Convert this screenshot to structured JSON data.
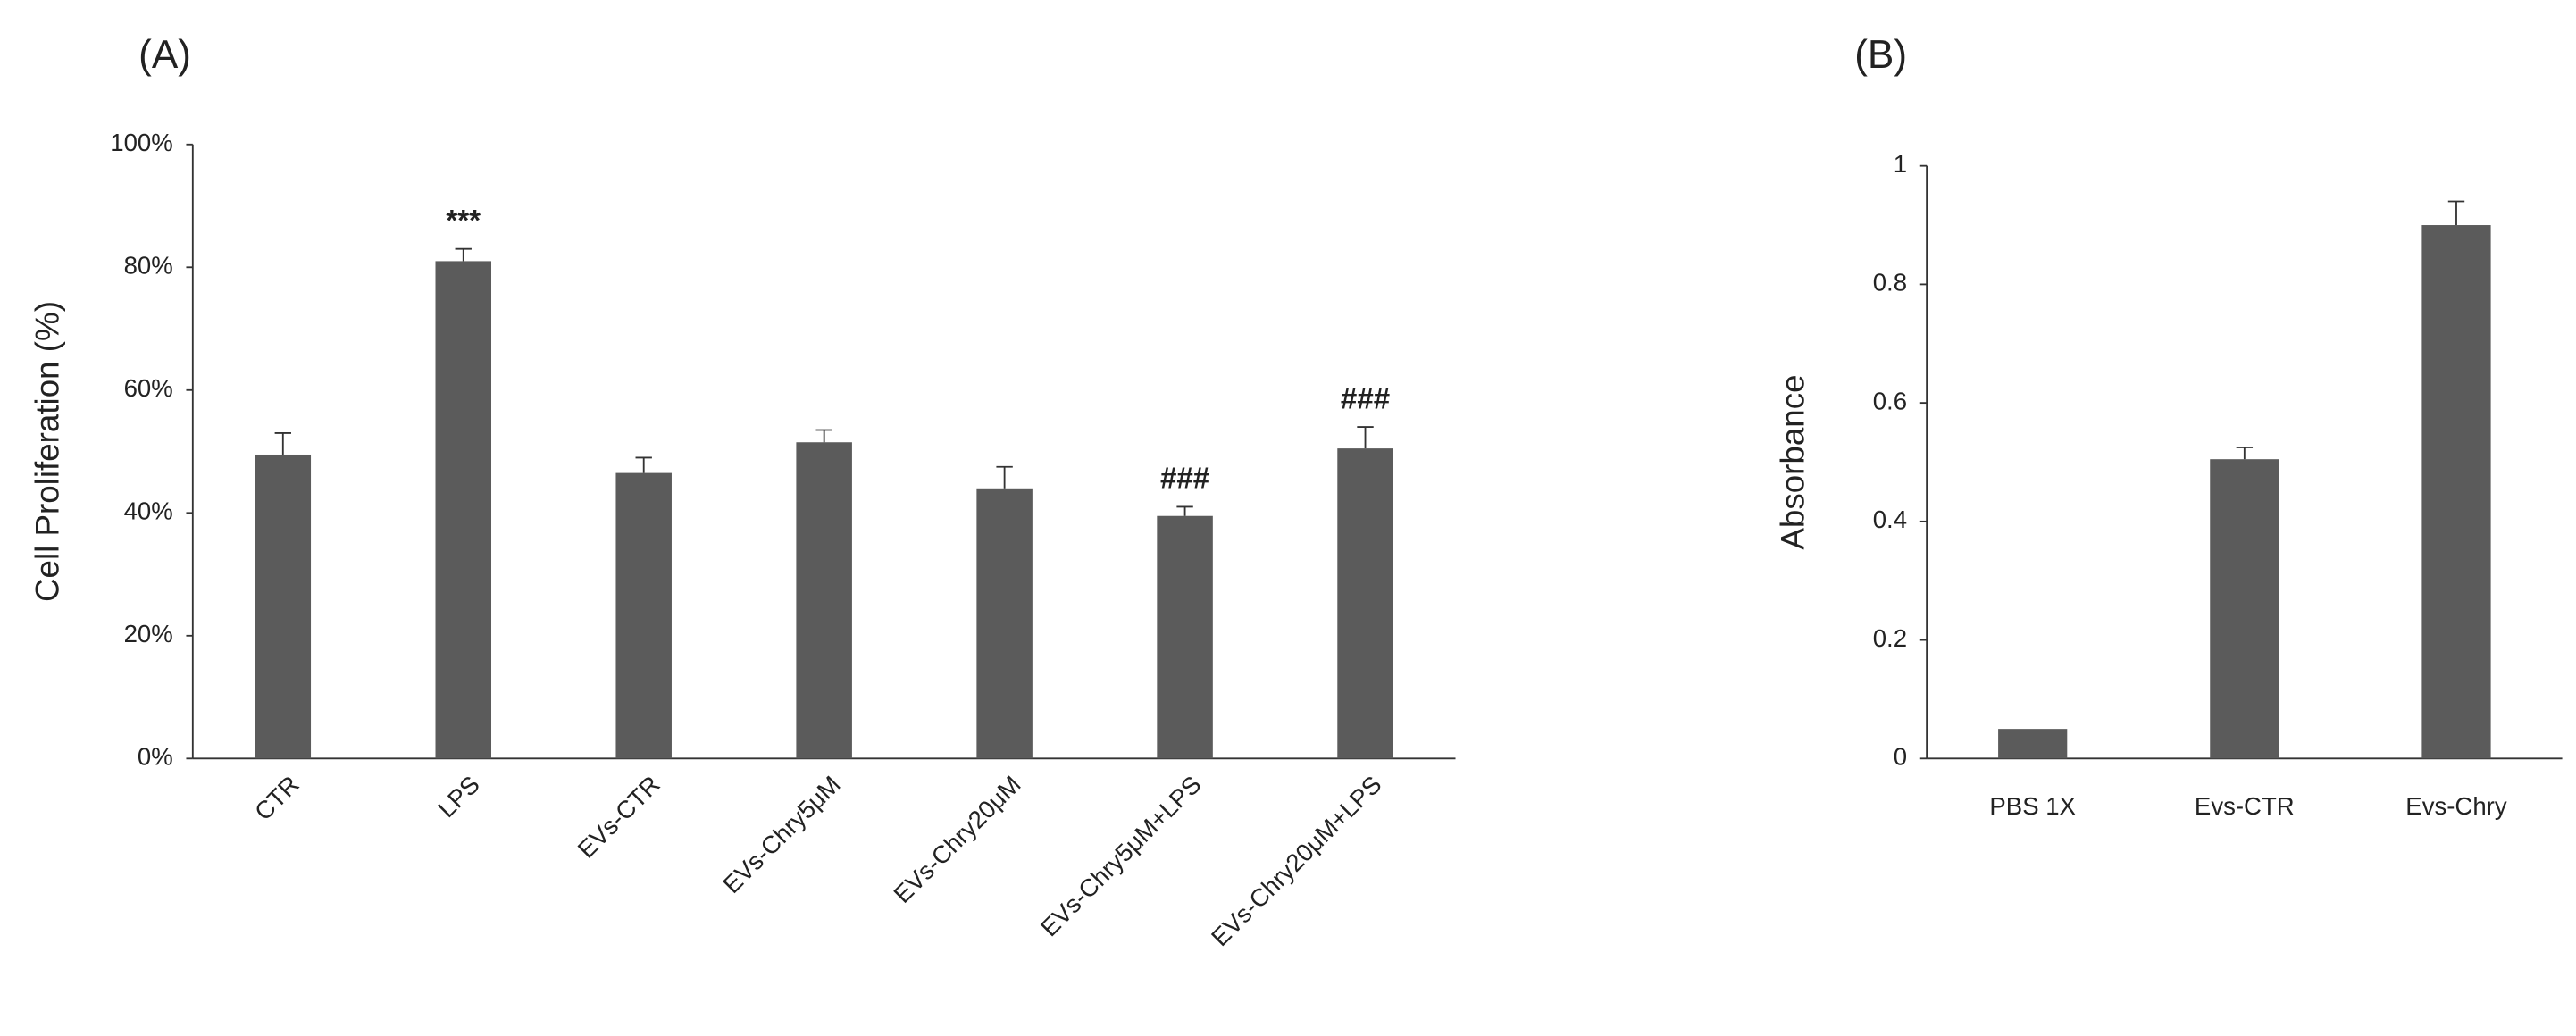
{
  "chart_data": [
    {
      "type": "bar",
      "panel_label": "(A)",
      "ylabel": "Cell Proliferation (%)",
      "categories": [
        "CTR",
        "LPS",
        "EVs-CTR",
        "EVs-Chry5μM",
        "EVs-Chry20μM",
        "EVs-Chry5μM+LPS",
        "EVs-Chry20μM+LPS"
      ],
      "values": [
        49.5,
        81,
        46.5,
        51.5,
        44,
        39.5,
        50.5
      ],
      "errors": [
        3.5,
        2,
        2.5,
        2,
        3.5,
        1.5,
        3.5
      ],
      "annotations": [
        {
          "text": "***",
          "category": "LPS"
        },
        {
          "text": "###",
          "category": "EVs-Chry5μM+LPS"
        },
        {
          "text": "###",
          "category": "EVs-Chry20μM+LPS"
        }
      ],
      "color": "#5b5b5b",
      "ylim": [
        0,
        100
      ],
      "yticks": [
        {
          "value": 0,
          "label": "0%"
        },
        {
          "value": 20,
          "label": "20%"
        },
        {
          "value": 40,
          "label": "40%"
        },
        {
          "value": 60,
          "label": "60%"
        },
        {
          "value": 80,
          "label": "80%"
        },
        {
          "value": 100,
          "label": "100%"
        }
      ],
      "grid": false,
      "rotate_xlabels": true
    },
    {
      "type": "bar",
      "panel_label": "(B)",
      "ylabel": "Absorbance",
      "categories": [
        "PBS 1X",
        "Evs-CTR",
        "Evs-Chry"
      ],
      "values": [
        0.05,
        0.505,
        0.9
      ],
      "errors": [
        0,
        0.02,
        0.04
      ],
      "color": "#5b5b5b",
      "ylim": [
        0,
        1
      ],
      "yticks": [
        0,
        0.2,
        0.4,
        0.6,
        0.8,
        1
      ],
      "grid": false,
      "rotate_xlabels": false
    }
  ]
}
